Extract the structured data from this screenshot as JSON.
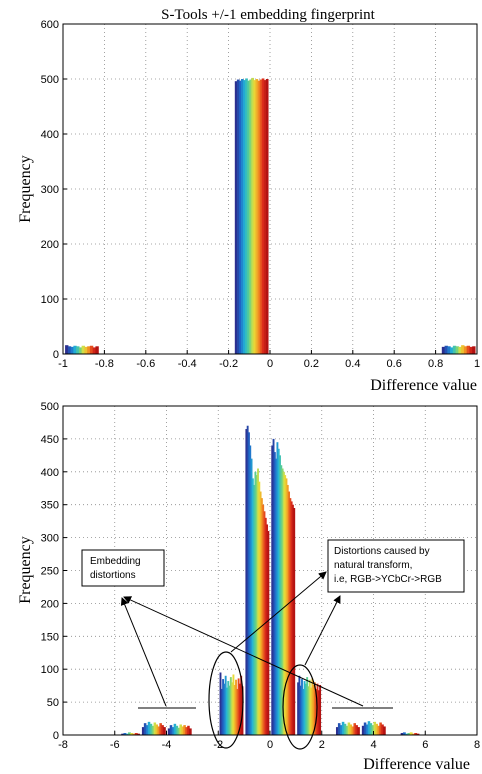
{
  "chart_data": [
    {
      "type": "bar",
      "title": "S-Tools +/-1 embedding fingerprint",
      "xlabel": "Difference value",
      "ylabel": "Frequency",
      "xlim": [
        -1,
        1
      ],
      "ylim": [
        0,
        600
      ],
      "xticks": [
        -1,
        -0.8,
        -0.6,
        -0.4,
        -0.2,
        0,
        0.2,
        0.4,
        0.6,
        0.8,
        1
      ],
      "yticks": [
        0,
        100,
        200,
        300,
        400,
        500,
        600
      ],
      "grid": true,
      "colormap": [
        "#2b2f8f",
        "#1f66c9",
        "#23b3d6",
        "#5fd08a",
        "#e8e23a",
        "#f39a24",
        "#e0301c",
        "#b31212"
      ],
      "clusters": [
        {
          "x_start": -0.99,
          "x_end": -0.83,
          "values": [
            16,
            14,
            13,
            15,
            14,
            12,
            15,
            13,
            14,
            15,
            12,
            14
          ]
        },
        {
          "x_start": -0.17,
          "x_end": -0.01,
          "values": [
            496,
            499,
            497,
            500,
            498,
            501,
            497,
            499,
            502,
            498,
            500,
            497,
            499,
            501,
            498,
            500
          ]
        },
        {
          "x_start": 0.83,
          "x_end": 0.99,
          "values": [
            13,
            15,
            14,
            12,
            15,
            14,
            13,
            16,
            14,
            15,
            13,
            14
          ]
        }
      ]
    },
    {
      "type": "bar",
      "title": "",
      "xlabel": "Difference value",
      "ylabel": "Frequency",
      "xlim": [
        -8,
        8
      ],
      "ylim": [
        0,
        500
      ],
      "xticks": [
        -8,
        -6,
        -4,
        -2,
        0,
        2,
        4,
        6,
        8
      ],
      "yticks": [
        0,
        50,
        100,
        150,
        200,
        250,
        300,
        350,
        400,
        450,
        500
      ],
      "grid": true,
      "colormap": [
        "#2b2f8f",
        "#1f66c9",
        "#23b3d6",
        "#5fd08a",
        "#e8e23a",
        "#f39a24",
        "#e0301c",
        "#b31212"
      ],
      "clusters": [
        {
          "x_start": -4.95,
          "x_end": -4.05,
          "values": [
            12,
            18,
            15,
            20,
            17,
            14,
            19,
            16,
            13,
            18,
            15,
            12
          ]
        },
        {
          "x_start": -3.95,
          "x_end": -3.05,
          "values": [
            10,
            15,
            12,
            17,
            14,
            11,
            16,
            13,
            15,
            12,
            14,
            10
          ]
        },
        {
          "x_start": -1.95,
          "x_end": -1.05,
          "values": [
            95,
            70,
            85,
            78,
            90,
            72,
            82,
            75,
            88,
            80,
            92,
            76,
            84,
            70,
            86,
            78,
            90,
            74
          ]
        },
        {
          "x_start": -0.95,
          "x_end": -0.05,
          "values": [
            465,
            470,
            460,
            440,
            420,
            390,
            380,
            400,
            395,
            405,
            385,
            370,
            360,
            350,
            340,
            330,
            320,
            310
          ]
        },
        {
          "x_start": 0.05,
          "x_end": 0.95,
          "values": [
            440,
            450,
            430,
            420,
            445,
            435,
            425,
            410,
            405,
            400,
            395,
            390,
            380,
            370,
            360,
            355,
            350,
            345
          ]
        },
        {
          "x_start": 1.05,
          "x_end": 1.95,
          "values": [
            80,
            90,
            75,
            85,
            70,
            82,
            78,
            88,
            74,
            84,
            72,
            86,
            76,
            80,
            70,
            78,
            68,
            76
          ]
        },
        {
          "x_start": 2.55,
          "x_end": 3.45,
          "values": [
            12,
            18,
            15,
            20,
            17,
            14,
            19,
            16,
            13,
            18,
            15,
            12
          ]
        },
        {
          "x_start": 3.55,
          "x_end": 4.45,
          "values": [
            14,
            19,
            16,
            21,
            18,
            15,
            20,
            17,
            14,
            19,
            16,
            13
          ]
        },
        {
          "x_start": 5.05,
          "x_end": 5.75,
          "values": [
            3,
            4,
            2,
            3,
            4,
            2,
            3,
            2
          ]
        },
        {
          "x_start": -5.75,
          "x_end": -5.05,
          "values": [
            2,
            3,
            2,
            4,
            3,
            2,
            3,
            2
          ]
        }
      ],
      "annotations": [
        {
          "text_lines": [
            "Embedding",
            "distortions"
          ]
        },
        {
          "text_lines": [
            "Distortions caused by",
            "natural transform,",
            "i.e, RGB->YCbCr->RGB"
          ]
        }
      ]
    }
  ]
}
